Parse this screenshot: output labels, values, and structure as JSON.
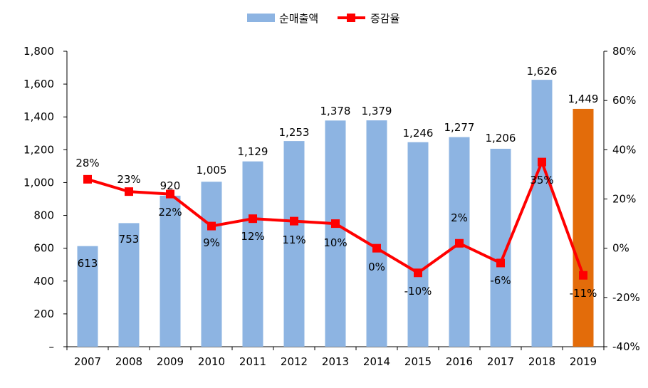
{
  "chart_data": {
    "type": "bar",
    "categories": [
      "2007",
      "2008",
      "2009",
      "2010",
      "2011",
      "2012",
      "2013",
      "2014",
      "2015",
      "2016",
      "2017",
      "2018",
      "2019"
    ],
    "series": [
      {
        "name": "순매출액",
        "type": "bar",
        "axis": "left",
        "color": "#8DB4E2",
        "highlight_color": "#E36C0A",
        "highlight_index": 12,
        "values": [
          613,
          753,
          920,
          1005,
          1129,
          1253,
          1378,
          1379,
          1246,
          1277,
          1206,
          1626,
          1449
        ],
        "labels": [
          "613",
          "753",
          "920",
          "1,005",
          "1,129",
          "1,253",
          "1,378",
          "1,379",
          "1,246",
          "1,277",
          "1,206",
          "1,626",
          "1,449"
        ]
      },
      {
        "name": "증감율",
        "type": "line",
        "axis": "right",
        "color": "#FF0000",
        "values": [
          28,
          23,
          22,
          9,
          12,
          11,
          10,
          0,
          -10,
          2,
          -6,
          35,
          -11
        ],
        "labels": [
          "28%",
          "23%",
          "22%",
          "9%",
          "12%",
          "11%",
          "10%",
          "0%",
          "-10%",
          "2%",
          "-6%",
          "35%",
          "-11%"
        ]
      }
    ],
    "ylim_left": [
      0,
      1800
    ],
    "yticks_left": [
      "–",
      "200",
      "400",
      "600",
      "800",
      "1,000",
      "1,200",
      "1,400",
      "1,600",
      "1,800"
    ],
    "ylim_right": [
      -40,
      80
    ],
    "yticks_right": [
      "-40%",
      "-20%",
      "0%",
      "20%",
      "40%",
      "60%",
      "80%"
    ],
    "legend_position": "top-center",
    "grid": false
  }
}
